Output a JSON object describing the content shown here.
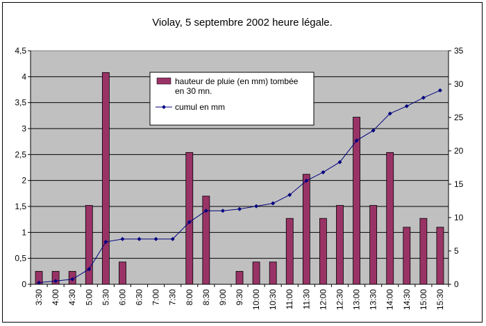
{
  "chart_data": {
    "type": "bar+line",
    "title": "Violay, 5 septembre 2002 heure légale.",
    "categories": [
      "3:30",
      "4:00",
      "4:30",
      "5:00",
      "5:30",
      "6:00",
      "6:30",
      "7:00",
      "7:30",
      "8:00",
      "8:30",
      "9:00",
      "9:30",
      "10:00",
      "10:30",
      "11:00",
      "11:30",
      "12:00",
      "12:30",
      "13:00",
      "13:30",
      "14:00",
      "14:30",
      "15:00",
      "15:30"
    ],
    "series": [
      {
        "name": "hauteur de pluie (en mm)  tombée en 30 mn.",
        "kind": "bar",
        "axis": "left",
        "color": "#993366",
        "values": [
          0.25,
          0.25,
          0.25,
          1.52,
          4.08,
          0.43,
          0,
          0,
          0,
          2.54,
          1.7,
          0,
          0.25,
          0.43,
          0.43,
          1.27,
          2.12,
          1.27,
          1.52,
          3.22,
          1.52,
          2.54,
          1.1,
          1.27,
          1.1
        ]
      },
      {
        "name": "cumul en mm",
        "kind": "line",
        "axis": "right",
        "color": "#000080",
        "values": [
          0.25,
          0.5,
          0.75,
          2.27,
          6.35,
          6.78,
          6.78,
          6.78,
          6.78,
          9.32,
          11.02,
          11.02,
          11.27,
          11.7,
          12.13,
          13.4,
          15.52,
          16.79,
          18.31,
          21.53,
          23.05,
          25.59,
          26.69,
          27.96,
          29.06
        ]
      }
    ],
    "ylim_left": [
      0,
      4.5
    ],
    "yticks_left": [
      "0",
      "0,5",
      "1",
      "1,5",
      "2",
      "2,5",
      "3",
      "3,5",
      "4",
      "4,5"
    ],
    "ylim_right": [
      0,
      35
    ],
    "yticks_right": [
      "0",
      "5",
      "10",
      "15",
      "20",
      "25",
      "30",
      "35"
    ],
    "grid": true,
    "plot_background": "#c0c0c0",
    "legend_position": "top-center"
  }
}
